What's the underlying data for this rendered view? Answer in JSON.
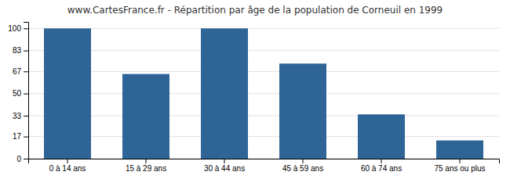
{
  "chart_data": {
    "type": "bar",
    "title": "www.CartesFrance.fr - Répartition par âge de la population de Corneuil en 1999",
    "categories": [
      "0 à 14 ans",
      "15 à 29 ans",
      "30 à 44 ans",
      "45 à 59 ans",
      "60 à 74 ans",
      "75 ans ou plus"
    ],
    "values": [
      100,
      65,
      100,
      73,
      34,
      14
    ],
    "color": "#2e6496",
    "ylim": [
      0,
      105
    ],
    "yticks": [
      0,
      17,
      33,
      50,
      67,
      83,
      100
    ],
    "grid": true
  }
}
